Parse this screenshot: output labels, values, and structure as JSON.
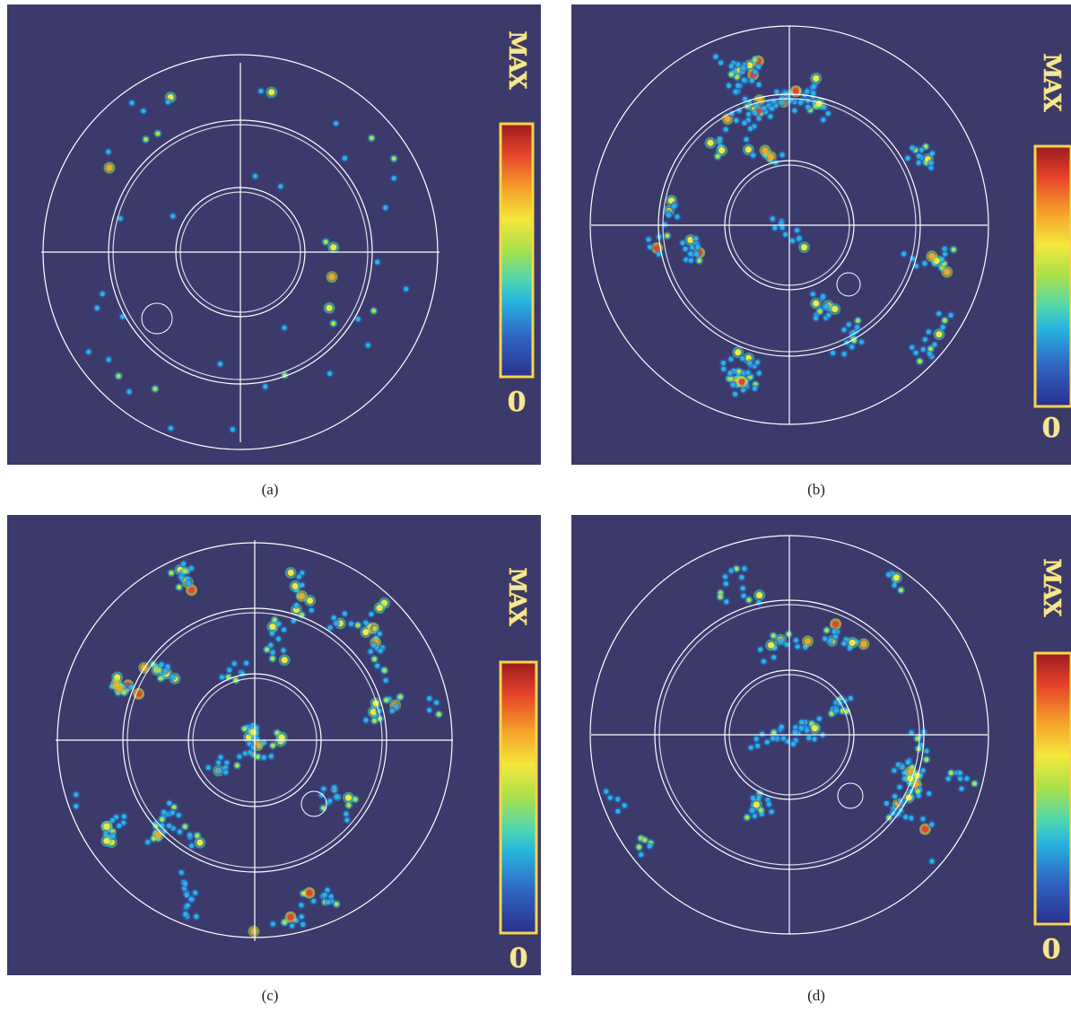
{
  "figure": {
    "panels": [
      {
        "id": "a",
        "caption": "(a)",
        "colorbar": {
          "max_label": "MAX",
          "min_label": "0"
        }
      },
      {
        "id": "b",
        "caption": "(b)",
        "colorbar": {
          "max_label": "MAX",
          "min_label": "0"
        }
      },
      {
        "id": "c",
        "caption": "(c)",
        "colorbar": {
          "max_label": "MAX",
          "min_label": "0"
        }
      },
      {
        "id": "d",
        "caption": "(d)",
        "colorbar": {
          "max_label": "MAX",
          "min_label": "0"
        }
      }
    ],
    "colors": {
      "background": "#3b3a6b",
      "grid_lines": "#ffffff",
      "label_text": "#f3e7a0",
      "label_glow": "#f7d54a",
      "colormap": [
        "#2c2f8c",
        "#2f66c4",
        "#27b5e0",
        "#4dd6b2",
        "#a8e04c",
        "#f3e83a",
        "#f5a42a",
        "#e8432a",
        "#9b1b1f"
      ]
    }
  }
}
